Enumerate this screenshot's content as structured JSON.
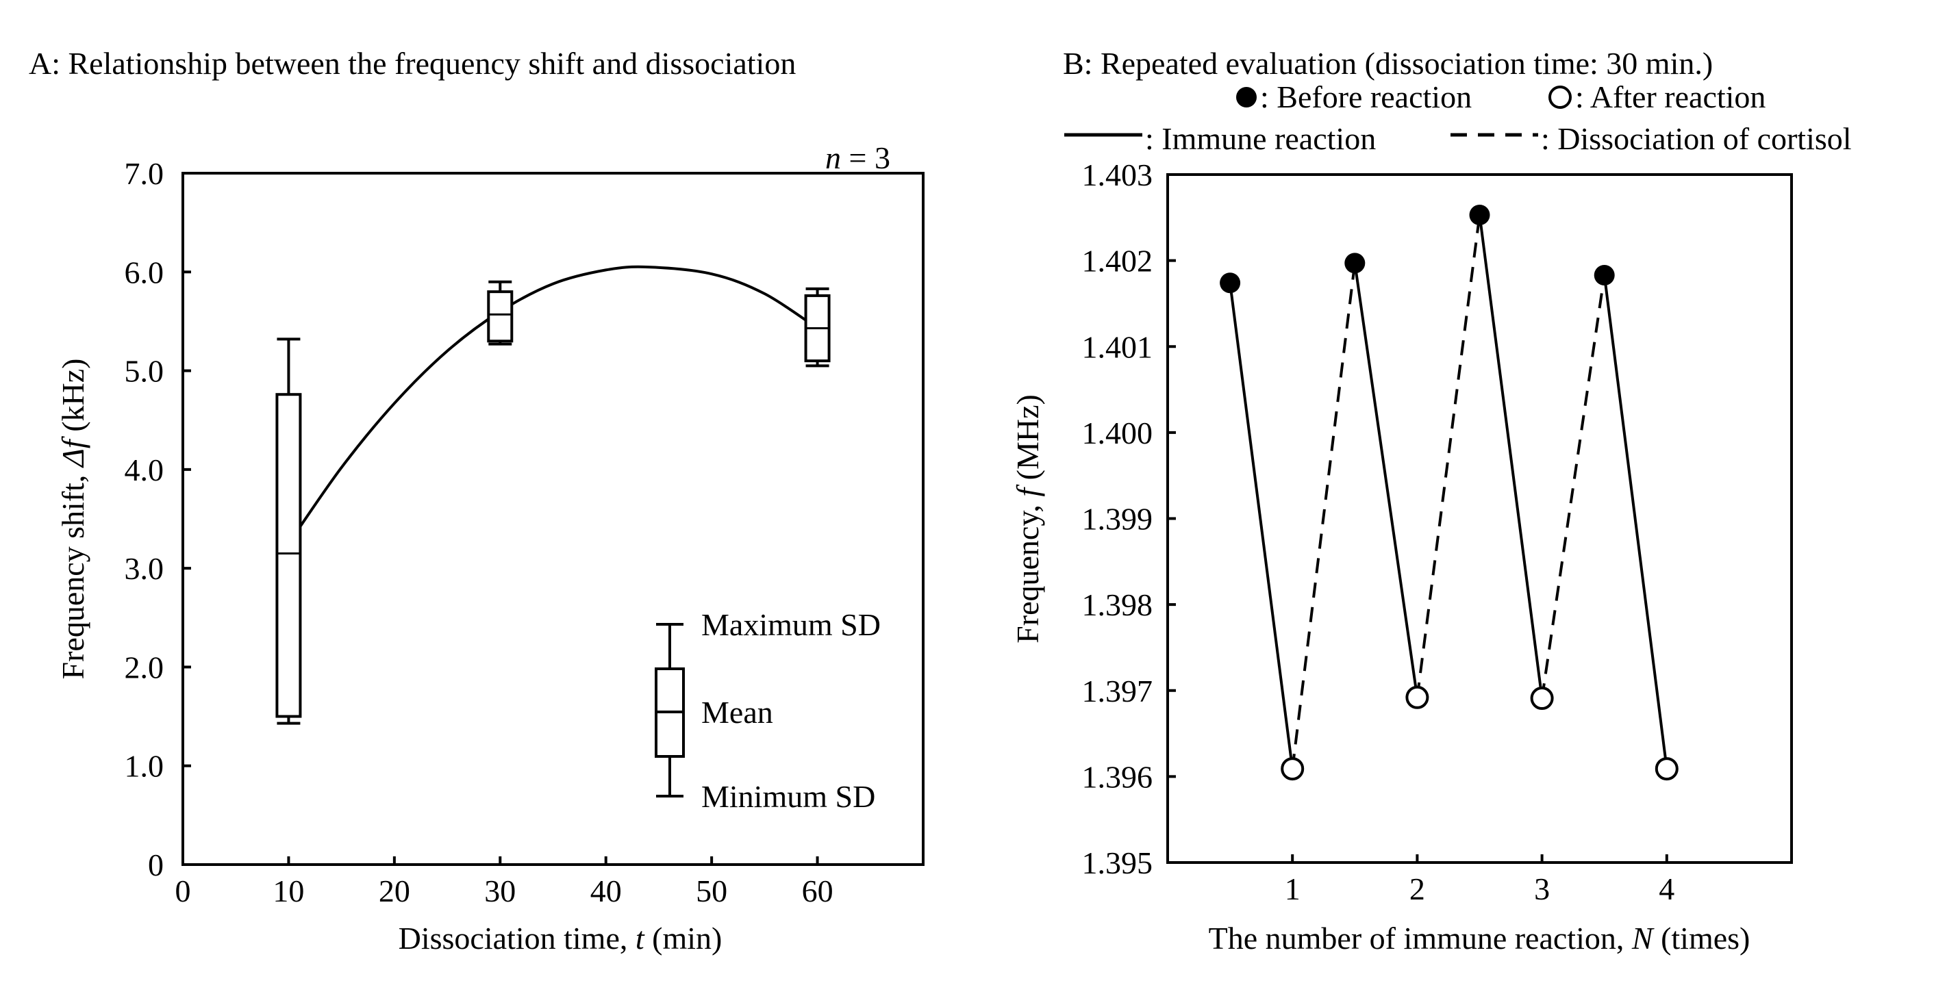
{
  "chart_data": [
    {
      "type": "box",
      "title": "A: Relationship between the frequency shift and dissociation",
      "annotation": "n = 3",
      "xlabel": {
        "prefix": "Dissociation time, ",
        "var": "t",
        "suffix": " (min)"
      },
      "ylabel": {
        "prefix": "Frequency shift,   ",
        "var": "Δf",
        "suffix": " (kHz)"
      },
      "xlim": [
        0,
        70
      ],
      "ylim": [
        0,
        7.0
      ],
      "xticks": [
        0,
        10,
        20,
        30,
        40,
        50,
        60
      ],
      "xtick_labels": [
        "0",
        "10",
        "20",
        "30",
        "40",
        "50",
        "60"
      ],
      "yticks": [
        0,
        1.0,
        2.0,
        3.0,
        4.0,
        5.0,
        6.0,
        7.0
      ],
      "ytick_labels": [
        "0",
        "1.0",
        "2.0",
        "3.0",
        "4.0",
        "5.0",
        "6.0",
        "7.0"
      ],
      "boxes": [
        {
          "x": 10,
          "min": 1.43,
          "box_low": 1.5,
          "mean": 3.15,
          "box_high": 4.76,
          "max": 5.32
        },
        {
          "x": 30,
          "min": 5.27,
          "box_low": 5.3,
          "mean": 5.57,
          "box_high": 5.8,
          "max": 5.9
        },
        {
          "x": 60,
          "min": 5.05,
          "box_low": 5.1,
          "mean": 5.43,
          "box_high": 5.76,
          "max": 5.83
        }
      ],
      "fit_curve": {
        "x": [
          10,
          15,
          20,
          25,
          30,
          35,
          40,
          44,
          50,
          55,
          60
        ],
        "y": [
          3.25,
          4.02,
          4.67,
          5.2,
          5.6,
          5.88,
          6.02,
          6.05,
          5.98,
          5.78,
          5.43
        ]
      },
      "legend": {
        "max_label": "Maximum SD",
        "mean_label": "Mean",
        "min_label": "Minimum SD"
      }
    },
    {
      "type": "line",
      "title": "B: Repeated evaluation (dissociation time: 30 min.)",
      "xlabel": {
        "prefix": "The number of immune reaction, ",
        "var": "N",
        "suffix": " (times)"
      },
      "ylabel": {
        "prefix": "Frequency, ",
        "var": "f",
        "suffix": " (MHz)"
      },
      "xlim": [
        0,
        5
      ],
      "ylim": [
        1.395,
        1.403
      ],
      "xticks": [
        1,
        2,
        3,
        4
      ],
      "xtick_labels": [
        "1",
        "2",
        "3",
        "4"
      ],
      "yticks": [
        1.395,
        1.396,
        1.397,
        1.398,
        1.399,
        1.4,
        1.401,
        1.402,
        1.403
      ],
      "ytick_labels": [
        "1.395",
        "1.396",
        "1.397",
        "1.398",
        "1.399",
        "1.400",
        "1.401",
        "1.402",
        "1.403"
      ],
      "before_reaction": {
        "x": [
          0.5,
          1.5,
          2.5,
          3.5
        ],
        "y": [
          1.40174,
          1.40197,
          1.40253,
          1.40183
        ]
      },
      "after_reaction": {
        "x": [
          1,
          2,
          3,
          4
        ],
        "y": [
          1.39609,
          1.39692,
          1.39691,
          1.39609
        ]
      },
      "legend": {
        "before_label": ": Before reaction",
        "after_label": ": After reaction",
        "immune_label": ": Immune reaction",
        "dissociation_label": ": Dissociation of cortisol"
      }
    }
  ]
}
